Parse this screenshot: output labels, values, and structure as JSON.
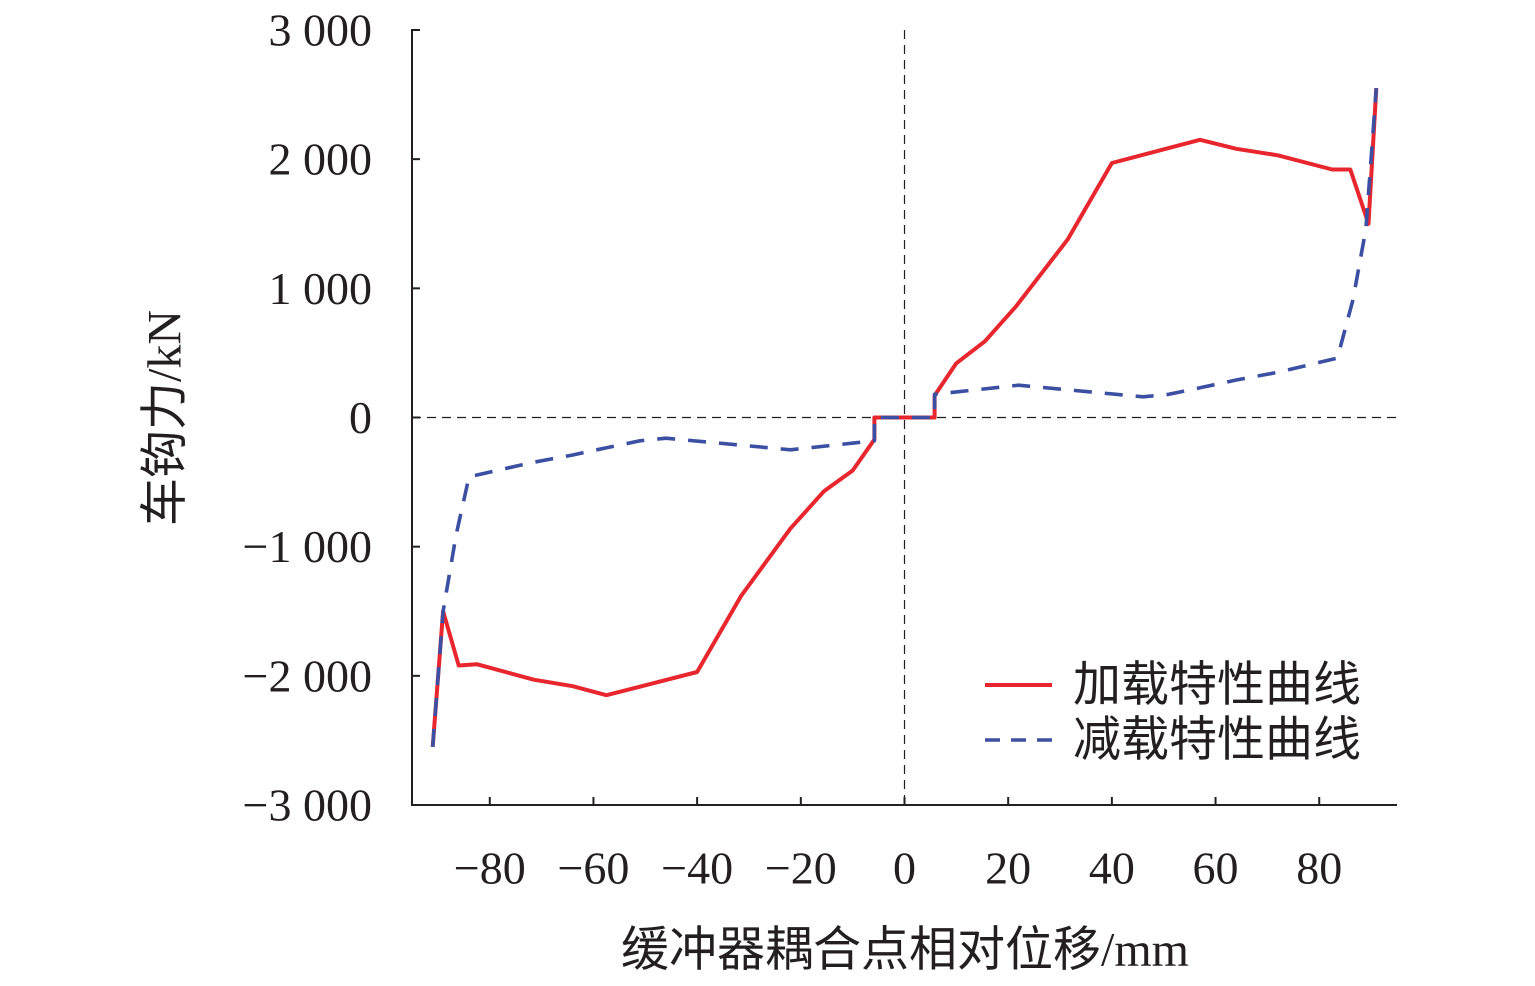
{
  "chart_data": {
    "type": "line",
    "xlabel": "缓冲器耦合点相对位移/mm",
    "ylabel": "车钩力/kN",
    "xlim": [
      -95,
      95
    ],
    "ylim": [
      -3000,
      3000
    ],
    "grid": false,
    "reference_lines": {
      "x": [
        0
      ],
      "y": [
        0
      ]
    },
    "xticks": [
      {
        "value": -80,
        "label": "−80"
      },
      {
        "value": -60,
        "label": "−60"
      },
      {
        "value": -40,
        "label": "−40"
      },
      {
        "value": -20,
        "label": "−20"
      },
      {
        "value": 0,
        "label": "0"
      },
      {
        "value": 20,
        "label": "20"
      },
      {
        "value": 40,
        "label": "40"
      },
      {
        "value": 60,
        "label": "60"
      },
      {
        "value": 80,
        "label": "80"
      }
    ],
    "yticks": [
      {
        "value": 3000,
        "label": "3 000"
      },
      {
        "value": 2000,
        "label": "2 000"
      },
      {
        "value": 1000,
        "label": "1 000"
      },
      {
        "value": 0,
        "label": "0"
      },
      {
        "value": -1000,
        "label": "−1 000"
      },
      {
        "value": -2000,
        "label": "−2 000"
      },
      {
        "value": -3000,
        "label": "−3 000"
      }
    ],
    "legend": {
      "position": "bottom-right"
    },
    "series": [
      {
        "name": "加载特性曲线",
        "color": "#e8262d",
        "dashed": false,
        "x": [
          -91,
          -89,
          -86,
          -82.5,
          -71.5,
          -64,
          -57.5,
          -40,
          -31.5,
          -22,
          -15.5,
          -10,
          -5.8,
          -5.8,
          5.8,
          5.8,
          10,
          15.5,
          21.5,
          31.5,
          40,
          57,
          64,
          72,
          82.5,
          86,
          89.5,
          91
        ],
        "y": [
          -2550,
          -1500,
          -1920,
          -1910,
          -2030,
          -2080,
          -2150,
          -1970,
          -1380,
          -860,
          -570,
          -410,
          -170,
          0,
          0,
          170,
          420,
          590,
          860,
          1380,
          1970,
          2150,
          2080,
          2030,
          1920,
          1920,
          1500,
          2550
        ]
      },
      {
        "name": "减载特性曲线",
        "color": "#3b4fa3",
        "dashed": true,
        "x": [
          -91,
          -89,
          -86.5,
          -84,
          -72,
          -64,
          -57,
          -51,
          -46,
          -22,
          -5.8,
          -5.8,
          5.8,
          5.8,
          22,
          46,
          51,
          57,
          64,
          72,
          83.5,
          86.5,
          89,
          91
        ],
        "y": [
          -2550,
          -1500,
          -910,
          -460,
          -350,
          -290,
          -230,
          -180,
          -160,
          -250,
          -180,
          0,
          0,
          180,
          250,
          160,
          180,
          230,
          290,
          350,
          460,
          910,
          1460,
          2550
        ]
      }
    ]
  }
}
